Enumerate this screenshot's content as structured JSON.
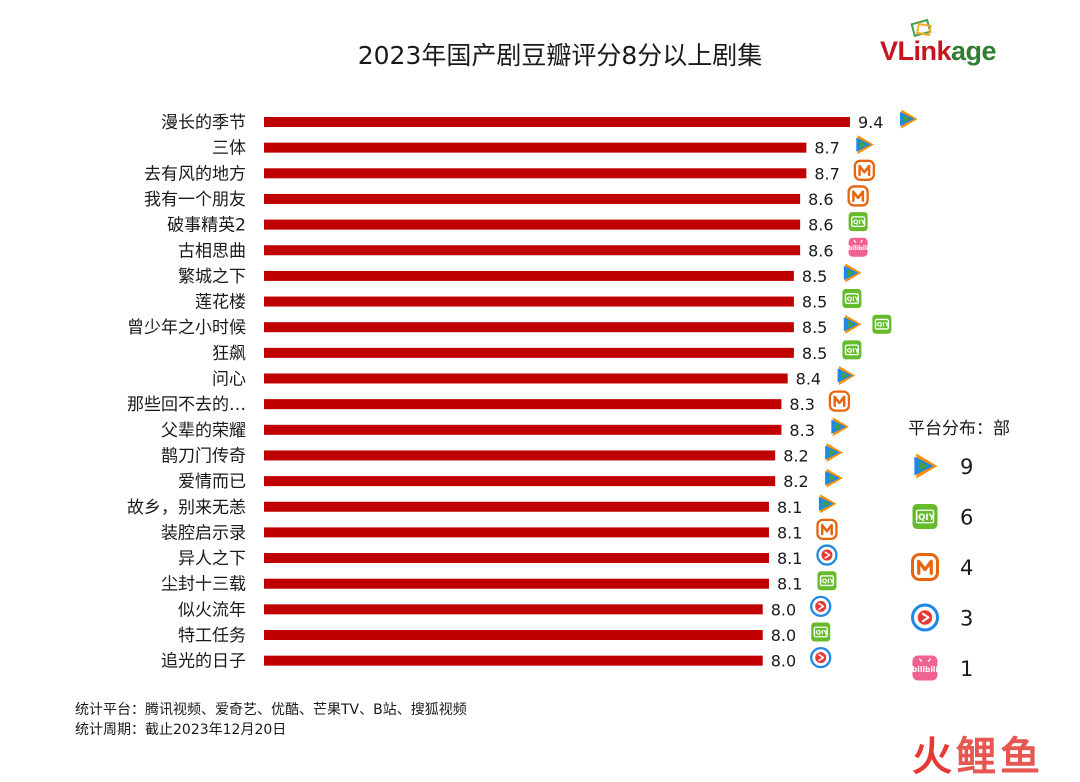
{
  "title": "2023年国产剧豆瓣评分8分以上剧集",
  "brand": {
    "part1": "VLink",
    "part2": "age"
  },
  "colors": {
    "bar": "#c00000",
    "tencent_blue": "#1e88e5",
    "tencent_orange": "#ff8f00",
    "tencent_green": "#43a047",
    "iqiyi_green": "#66bb2a",
    "mango_orange": "#e8650e",
    "youku_blue": "#1e88e5",
    "youku_red": "#e53935",
    "bilibili_pink": "#f06292"
  },
  "chart_data": {
    "type": "bar",
    "orientation": "horizontal",
    "categories": [
      "漫长的季节",
      "三体",
      "去有风的地方",
      "我有一个朋友",
      "破事精英2",
      "古相思曲",
      "繁城之下",
      "莲花楼",
      "曾少年之小时候",
      "狂飙",
      "问心",
      "那些回不去的…",
      "父辈的荣耀",
      "鹊刀门传奇",
      "爱情而已",
      "故乡，别来无恙",
      "装腔启示录",
      "异人之下",
      "尘封十三载",
      "似火流年",
      "特工任务",
      "追光的日子"
    ],
    "values": [
      9.4,
      8.7,
      8.7,
      8.6,
      8.6,
      8.6,
      8.5,
      8.5,
      8.5,
      8.5,
      8.4,
      8.3,
      8.3,
      8.2,
      8.2,
      8.1,
      8.1,
      8.1,
      8.1,
      8.0,
      8.0,
      8.0
    ],
    "value_labels": [
      "9.4",
      "8.7",
      "8.7",
      "8.6",
      "8.6",
      "8.6",
      "8.5",
      "8.5",
      "8.5",
      "8.5",
      "8.4",
      "8.3",
      "8.3",
      "8.2",
      "8.2",
      "8.1",
      "8.1",
      "8.1",
      "8.1",
      "8.0",
      "8.0",
      "8.0"
    ],
    "platforms": [
      [
        "tencent"
      ],
      [
        "tencent"
      ],
      [
        "mango"
      ],
      [
        "mango"
      ],
      [
        "iqiyi"
      ],
      [
        "bilibili"
      ],
      [
        "tencent"
      ],
      [
        "iqiyi"
      ],
      [
        "tencent",
        "iqiyi"
      ],
      [
        "iqiyi"
      ],
      [
        "tencent"
      ],
      [
        "mango"
      ],
      [
        "tencent"
      ],
      [
        "tencent"
      ],
      [
        "tencent"
      ],
      [
        "tencent"
      ],
      [
        "mango"
      ],
      [
        "youku"
      ],
      [
        "iqiyi"
      ],
      [
        "youku"
      ],
      [
        "iqiyi"
      ],
      [
        "youku"
      ]
    ],
    "title": "2023年国产剧豆瓣评分8分以上剧集",
    "xlabel": "",
    "ylabel": "",
    "grid": false,
    "legend_position": "right"
  },
  "legend": {
    "title": "平台分布：部",
    "items": [
      {
        "platform": "tencent",
        "icon": "tencent-video-icon",
        "count": "9"
      },
      {
        "platform": "iqiyi",
        "icon": "iqiyi-icon",
        "count": "6"
      },
      {
        "platform": "mango",
        "icon": "mango-tv-icon",
        "count": "4"
      },
      {
        "platform": "youku",
        "icon": "youku-icon",
        "count": "3"
      },
      {
        "platform": "bilibili",
        "icon": "bilibili-icon",
        "count": "1"
      }
    ]
  },
  "footer": {
    "line1": "统计平台：腾讯视频、爱奇艺、优酷、芒果TV、B站、搜狐视频",
    "line2": "统计周期：截止2023年12月20日"
  },
  "watermark": {
    "a": "火",
    "b": "鲤鱼"
  }
}
